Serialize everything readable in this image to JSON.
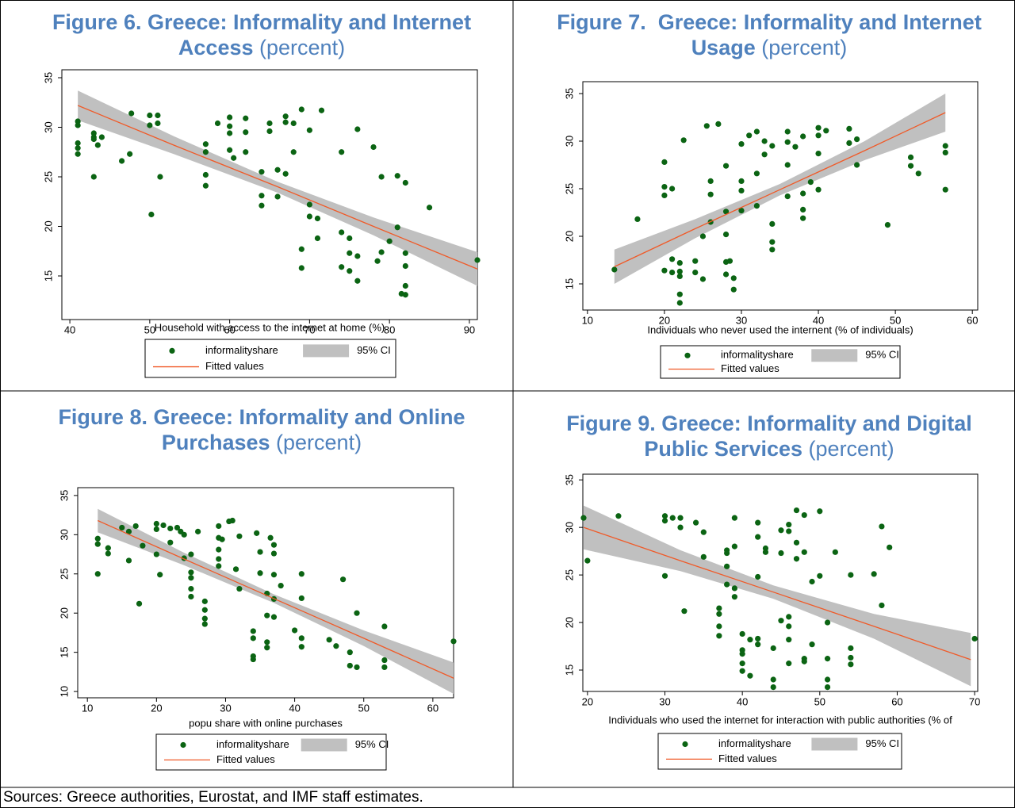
{
  "chart_data": [
    {
      "type": "scatter",
      "title": "Figure 6. Greece: Informality and Internet Access",
      "subtitle": "(percent)",
      "x_label": "Household with access to the internet at home (%)",
      "xlim": [
        39,
        91
      ],
      "xticks": [
        40,
        50,
        60,
        70,
        80,
        90
      ],
      "ylim": [
        10.6,
        35.8
      ],
      "yticks": [
        15,
        20,
        25,
        30,
        35
      ],
      "series": [
        {
          "name": "informalityshare",
          "color": "#0b6413",
          "x": [
            41,
            41,
            41,
            41,
            41,
            43,
            43,
            43,
            43,
            43.5,
            44,
            46.5,
            47.5,
            47.7,
            50,
            50,
            50.2,
            51,
            51,
            51.3,
            57,
            57,
            57,
            57,
            58.5,
            60,
            60,
            60,
            60,
            60.5,
            62,
            62,
            62,
            64,
            64,
            64,
            65,
            65,
            66,
            66,
            67,
            67,
            67,
            68,
            68,
            69,
            69,
            69,
            70,
            70,
            70,
            71,
            71,
            71.5,
            74,
            74,
            75,
            75,
            75,
            76,
            76,
            76,
            78,
            78.5,
            79,
            80,
            81,
            81.5,
            82,
            82,
            82,
            82,
            82,
            85,
            91,
            81,
            74,
            79
          ],
          "values": [
            30.6,
            30.2,
            28.4,
            27.9,
            27.3,
            29.4,
            29,
            28.8,
            25,
            28.2,
            29,
            26.6,
            27.3,
            31.4,
            31.2,
            30.2,
            21.2,
            30.4,
            31.2,
            25,
            28.3,
            27.5,
            25.2,
            24.1,
            30.4,
            31,
            30.1,
            29.4,
            27.7,
            26.9,
            30.9,
            27.5,
            29.5,
            25.5,
            23.1,
            22.1,
            30.4,
            29.6,
            25.7,
            23,
            31.1,
            30.5,
            25.3,
            30.4,
            27.5,
            31.8,
            17.7,
            15.8,
            29.7,
            22.2,
            21,
            20.8,
            18.8,
            31.7,
            27.5,
            19.4,
            18.8,
            17.3,
            15.5,
            29.8,
            17,
            14.5,
            28,
            16.5,
            25,
            18.5,
            25.1,
            13.2,
            24.4,
            17.3,
            16,
            14,
            13.1,
            21.9,
            16.6,
            19.9,
            15.9,
            17.4
          ]
        },
        {
          "name": "95% CI",
          "type": "band",
          "color": "#c0c0c0",
          "x": [
            41,
            53,
            66,
            78,
            91
          ],
          "lower": [
            30.7,
            27.3,
            23.4,
            19.1,
            14.0
          ],
          "upper": [
            33.7,
            29.1,
            24.5,
            20.9,
            17.4
          ]
        },
        {
          "name": "Fitted values",
          "type": "line",
          "color": "#f05a28",
          "x": [
            41,
            53,
            66,
            78,
            91
          ],
          "values": [
            32.2,
            28.2,
            24.0,
            20.0,
            15.7
          ]
        }
      ]
    },
    {
      "type": "scatter",
      "title": "Figure 7.  Greece: Informality and Internet Usage",
      "subtitle": "(percent)",
      "x_label": "Individuals who never used the internent (% of individuals)",
      "xlim": [
        9.4,
        60.7
      ],
      "xticks": [
        10,
        20,
        30,
        40,
        50,
        60
      ],
      "ylim": [
        12.25,
        36.25
      ],
      "yticks": [
        15,
        20,
        25,
        30,
        35
      ],
      "series": [
        {
          "name": "informalityshare",
          "color": "#0b6413",
          "x": [
            13.5,
            16.5,
            20,
            20,
            20,
            20,
            21,
            21,
            21,
            22,
            22,
            22,
            22,
            22,
            22.5,
            24,
            24,
            25,
            25,
            25.5,
            26,
            26,
            26,
            27,
            28,
            28,
            28,
            28,
            28,
            28.5,
            29,
            29,
            30,
            30,
            30,
            30,
            31,
            32,
            32,
            32,
            33,
            33,
            34,
            34,
            34,
            34,
            36,
            36,
            36,
            36,
            37,
            38,
            38,
            38,
            38,
            39,
            40,
            40,
            40,
            40,
            41,
            44,
            44,
            45,
            49,
            52,
            52,
            53,
            56.5,
            56.5,
            56.5,
            45
          ],
          "values": [
            16.5,
            21.8,
            27.8,
            25.2,
            24.3,
            16.4,
            17.6,
            16.2,
            25,
            17.2,
            16.3,
            15.8,
            13.9,
            13,
            30.1,
            17.4,
            16.2,
            20,
            15.5,
            31.6,
            25.8,
            24.4,
            21.5,
            31.8,
            27.4,
            22.6,
            20.2,
            17.3,
            16,
            17.4,
            15.6,
            14.4,
            29.7,
            25.8,
            24.8,
            22.7,
            30.6,
            31,
            26.6,
            23.2,
            30,
            28.6,
            21.3,
            19.4,
            18.6,
            29.5,
            31,
            29.9,
            27.5,
            24.2,
            29.4,
            30.5,
            24.5,
            22.8,
            21.9,
            25.7,
            31.4,
            30.6,
            28.7,
            24.9,
            31.1,
            31.3,
            29.8,
            30.2,
            21.2,
            28.3,
            27.4,
            26.6,
            29.5,
            28.8,
            24.9,
            27.5
          ]
        },
        {
          "name": "95% CI",
          "type": "band",
          "color": "#c0c0c0",
          "x": [
            13.5,
            24,
            35,
            46,
            56.5
          ],
          "lower": [
            15.0,
            19.8,
            24.3,
            28.0,
            31.0
          ],
          "upper": [
            18.6,
            21.8,
            25.5,
            30.0,
            35.0
          ]
        },
        {
          "name": "Fitted values",
          "type": "line",
          "color": "#f05a28",
          "x": [
            13.5,
            24,
            35,
            46,
            56.5
          ],
          "values": [
            16.8,
            20.8,
            24.9,
            29.0,
            33.0
          ]
        }
      ]
    },
    {
      "type": "scatter",
      "title": "Figure 8. Greece: Informality and Online Purchases",
      "subtitle": "(percent)",
      "x_label": "popu share with online purchases",
      "xlim": [
        8.6,
        63
      ],
      "xticks": [
        10,
        20,
        30,
        40,
        50,
        60
      ],
      "ylim": [
        9.2,
        36
      ],
      "yticks": [
        10,
        15,
        20,
        25,
        30,
        35
      ],
      "series": [
        {
          "name": "informalityshare",
          "color": "#0b6413",
          "x": [
            11.5,
            11.5,
            11.5,
            13,
            13,
            15,
            16,
            16,
            17,
            17.5,
            18,
            20,
            20,
            20,
            20.5,
            21,
            22,
            22,
            23,
            23.5,
            24,
            24,
            25,
            25,
            25,
            25,
            25,
            26,
            27,
            27,
            27,
            27,
            29,
            29,
            29,
            29,
            29,
            29.5,
            30.5,
            31,
            31.5,
            32,
            32,
            34,
            34,
            34,
            34,
            34.5,
            35,
            35,
            36,
            36,
            36,
            36,
            36.5,
            37,
            37,
            37,
            37,
            37,
            38,
            40,
            41,
            41,
            41,
            41,
            45,
            46,
            47,
            48,
            48,
            49,
            49,
            53,
            53,
            53,
            63
          ],
          "values": [
            29.5,
            28.8,
            25,
            28.3,
            27.6,
            30.9,
            30.4,
            26.7,
            31.1,
            21.2,
            28.6,
            31.4,
            30.7,
            27.5,
            24.9,
            31.2,
            30.8,
            29,
            30.9,
            30.4,
            30,
            27,
            27.5,
            25.2,
            24.5,
            23.1,
            22.1,
            30.4,
            21.5,
            20.4,
            19.3,
            18.6,
            31.1,
            29.6,
            28.1,
            26.9,
            26,
            29.4,
            31.7,
            31.8,
            25.6,
            29.8,
            23.1,
            17.7,
            16.8,
            14.5,
            14.1,
            30.2,
            25.1,
            27.8,
            22.5,
            19.7,
            16.3,
            15.6,
            29.6,
            28.7,
            27.6,
            24.9,
            21.8,
            19.5,
            23.5,
            17.8,
            25,
            21.9,
            16.8,
            15.7,
            16.6,
            15.8,
            24.3,
            15,
            13.3,
            13.1,
            20,
            18.3,
            14,
            13.1,
            16.4
          ]
        },
        {
          "name": "95% CI",
          "type": "band",
          "color": "#c0c0c0",
          "x": [
            11.5,
            24,
            37,
            50,
            63
          ],
          "lower": [
            30.3,
            26.1,
            21.3,
            15.8,
            9.7
          ],
          "upper": [
            33.3,
            27.7,
            22.4,
            17.8,
            13.7
          ]
        },
        {
          "name": "Fitted values",
          "type": "line",
          "color": "#f05a28",
          "x": [
            11.5,
            24,
            37,
            50,
            63
          ],
          "values": [
            31.8,
            26.9,
            21.85,
            16.8,
            11.7
          ]
        }
      ]
    },
    {
      "type": "scatter",
      "title": "Figure 9. Greece: Informality and Digital Public Services",
      "subtitle": "(percent)",
      "x_label": "Individuals who used the internet for interaction with public authorities (% of",
      "xlim": [
        19.4,
        70.4
      ],
      "xticks": [
        20,
        30,
        40,
        50,
        60,
        70
      ],
      "ylim": [
        12.75,
        35.6
      ],
      "yticks": [
        15,
        20,
        25,
        30,
        35
      ],
      "series": [
        {
          "name": "informalityshare",
          "color": "#0b6413",
          "x": [
            19.5,
            20,
            24,
            30,
            30,
            30,
            31,
            32,
            32,
            32.5,
            34,
            35,
            35,
            37,
            37,
            37,
            37,
            38,
            38,
            38,
            38,
            39,
            39,
            39,
            39,
            40,
            40,
            40,
            40,
            40,
            41,
            41,
            42,
            42,
            42,
            42,
            42,
            43,
            43,
            44,
            44,
            44,
            45,
            45,
            46,
            46,
            46,
            46,
            46,
            46,
            47,
            47,
            47,
            48,
            48,
            48,
            48,
            49,
            49,
            50,
            51,
            51,
            51,
            51,
            52,
            54,
            54,
            54,
            54,
            57,
            58,
            58,
            59,
            70,
            45,
            50
          ],
          "values": [
            31,
            26.5,
            31.2,
            31.2,
            30.7,
            24.9,
            31,
            31,
            30,
            21.2,
            30.5,
            29.5,
            26.9,
            21.5,
            20.9,
            19.6,
            18.6,
            27.6,
            27.3,
            25.9,
            24,
            31,
            28,
            23.6,
            22.7,
            18.8,
            17.1,
            16.7,
            15.7,
            14.9,
            18.2,
            14.4,
            30.5,
            29,
            24.8,
            18.3,
            17.7,
            27.8,
            27.4,
            17.3,
            14,
            13.2,
            27.3,
            29.7,
            30.3,
            29.6,
            20.6,
            19.6,
            18.2,
            15.7,
            31.8,
            28.4,
            26.7,
            31.3,
            27.4,
            16.2,
            15.9,
            24.3,
            17.7,
            31.7,
            20,
            16.2,
            14,
            13.2,
            27.4,
            25,
            17.3,
            16.3,
            15.6,
            25.1,
            30.1,
            21.8,
            27.9,
            18.3,
            20.2,
            24.9
          ]
        },
        {
          "name": "95% CI",
          "type": "band",
          "color": "#c0c0c0",
          "x": [
            19.5,
            32,
            44,
            57,
            69.5
          ],
          "lower": [
            27.7,
            25.4,
            22.5,
            18.3,
            13.3
          ],
          "upper": [
            32.3,
            27.6,
            23.9,
            20.9,
            18.9
          ]
        },
        {
          "name": "Fitted values",
          "type": "line",
          "color": "#f05a28",
          "x": [
            19.5,
            32,
            44,
            57,
            69.5
          ],
          "values": [
            30,
            26.5,
            23.2,
            19.6,
            16.1
          ]
        }
      ]
    }
  ],
  "source": "Sources: Greece authorities, Eurostat, and IMF staff estimates."
}
